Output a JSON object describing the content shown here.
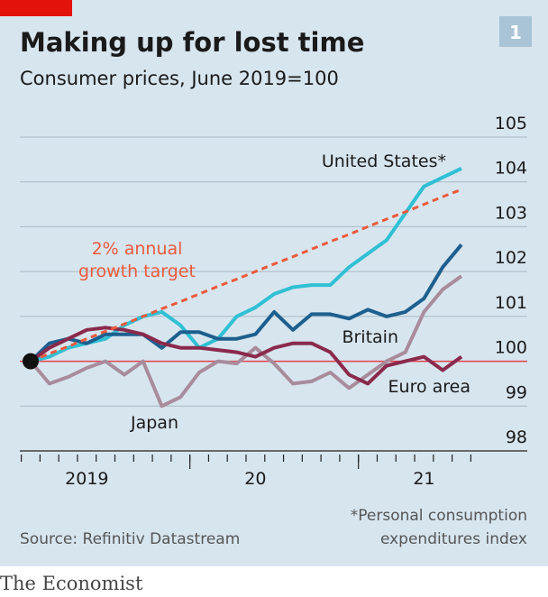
{
  "chart_data": {
    "type": "line",
    "title": "Making up for lost time",
    "subtitle": "Consumer prices, June 2019=100",
    "badge": "1",
    "categories": [
      null,
      null,
      null,
      "2019",
      null,
      null,
      null,
      null,
      null,
      null,
      null,
      null,
      "20",
      null,
      null,
      null,
      null,
      null,
      null,
      null,
      null,
      "21",
      null,
      null
    ],
    "series": [
      {
        "name": "United States*",
        "color": "#30c0d4",
        "values": [
          100,
          100.1,
          100.3,
          100.4,
          100.5,
          100.8,
          101.0,
          101.1,
          100.8,
          100.3,
          100.5,
          101.0,
          101.2,
          101.5,
          101.65,
          101.7,
          101.7,
          102.1,
          102.4,
          102.7,
          103.3,
          103.9,
          104.1,
          104.3
        ]
      },
      {
        "name": "Britain",
        "color": "#1d5f8e",
        "values": [
          100,
          100.4,
          100.5,
          100.4,
          100.6,
          100.6,
          100.6,
          100.3,
          100.65,
          100.65,
          100.5,
          100.5,
          100.6,
          101.1,
          100.7,
          101.05,
          101.05,
          100.95,
          101.15,
          101.0,
          101.1,
          101.4,
          102.1,
          102.6
        ]
      },
      {
        "name": "Euro area",
        "color": "#a98c9c",
        "values": [
          100,
          99.5,
          99.65,
          99.85,
          100.0,
          99.7,
          100.0,
          99.0,
          99.2,
          99.75,
          100.0,
          99.95,
          100.3,
          99.95,
          99.5,
          99.55,
          99.75,
          99.4,
          99.7,
          100.0,
          100.2,
          101.1,
          101.6,
          101.9
        ]
      },
      {
        "name": "Japan",
        "color": "#8a2a4c",
        "values": [
          100,
          100.3,
          100.5,
          100.7,
          100.75,
          100.7,
          100.6,
          100.4,
          100.3,
          100.3,
          100.25,
          100.2,
          100.1,
          100.3,
          100.4,
          100.4,
          100.2,
          99.7,
          99.5,
          99.9,
          100.0,
          100.1,
          99.8,
          100.1
        ]
      },
      {
        "color": "#ec5a3c",
        "dashed": true,
        "values": [
          100,
          100.17,
          100.33,
          100.5,
          100.67,
          100.83,
          101.0,
          101.17,
          101.33,
          101.5,
          101.67,
          101.83,
          102.0,
          102.17,
          102.33,
          102.5,
          102.67,
          102.83,
          103.0,
          103.17,
          103.33,
          103.5,
          103.67,
          103.83
        ]
      }
    ],
    "target_label": [
      "2% annual",
      "growth target"
    ],
    "reference_line": {
      "value": 100,
      "color": "#e2434b"
    },
    "ylim": [
      98,
      105
    ],
    "yticks": [
      98,
      99,
      100,
      101,
      102,
      103,
      104,
      105
    ],
    "grid": true,
    "source": "Source: Refinitiv Datastream",
    "footnote": [
      "*Personal consumption",
      "expenditures index"
    ],
    "brand": "The Economist"
  }
}
